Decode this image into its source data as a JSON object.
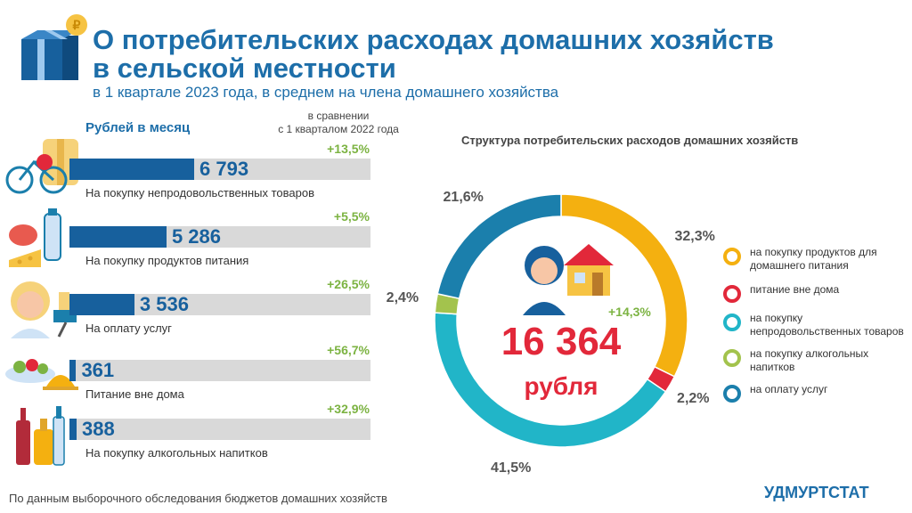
{
  "header": {
    "title_line1": "О потребительских расходах домашних хозяйств",
    "title_line2": "в сельской местности",
    "subtitle": "в 1 квартале 2023 года, в среднем на члена домашнего хозяйства"
  },
  "bars_section": {
    "units_label": "Рублей в месяц",
    "compare_label": "в сравнении\nс 1 кварталом 2022 года"
  },
  "chart_data": [
    {
      "type": "bar",
      "orientation": "horizontal",
      "ylabel": "Рублей в месяц",
      "categories": [
        "На покупку  непродовольственных товаров",
        "На покупку  продуктов питания",
        "На оплату услуг",
        "Питание вне дома",
        "На покупку  алкогольных напитков"
      ],
      "values": [
        6793,
        5286,
        3536,
        361,
        388
      ],
      "value_labels": [
        "6 793",
        "5 286",
        "3 536",
        "361",
        "388"
      ],
      "changes": [
        "+13,5%",
        "+5,5%",
        "+26,5%",
        "+56,7%",
        "+32,9%"
      ],
      "bar_color": "#17609d",
      "track_color": "#d9d9d9",
      "change_color": "#7cb342"
    },
    {
      "type": "pie",
      "variant": "donut",
      "title": "Структура потребительских расходов домашних хозяйств",
      "slices": [
        {
          "label": "на покупку продуктов для домашнего питания",
          "value": 32.3,
          "value_label": "32,3%",
          "color": "#f4b010"
        },
        {
          "label": "питание вне дома",
          "value": 2.2,
          "value_label": "2,2%",
          "color": "#e2283a"
        },
        {
          "label": "на покупку непродовольственных  товаров",
          "value": 41.5,
          "value_label": "41,5%",
          "color": "#21b5c8"
        },
        {
          "label": "на покупку алкогольных напитков",
          "value": 2.4,
          "value_label": "2,4%",
          "color": "#a3c34d"
        },
        {
          "label": "на оплату услуг",
          "value": 21.6,
          "value_label": "21,6%",
          "color": "#1b7fac"
        }
      ],
      "total_label": "16 364",
      "total_unit": "рубля",
      "total_change": "+14,3%",
      "legend_position": "right"
    }
  ],
  "footer": {
    "source": "По данным выборочного обследования бюджетов домашних хозяйств",
    "brand": "УДМУРТСТАТ"
  },
  "icons": [
    "gift-coin-icon",
    "bicycle-clothes-icon",
    "food-icon",
    "services-icon",
    "restaurant-icon",
    "alcohol-icon",
    "family-house-icon"
  ]
}
